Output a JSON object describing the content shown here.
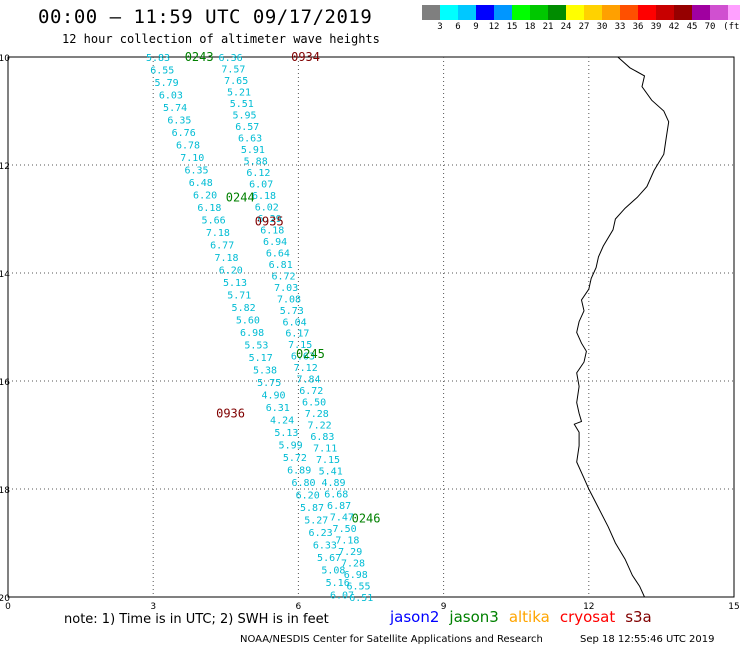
{
  "header": {
    "title": "00:00 – 11:59 UTC 09/17/2019",
    "subtitle": "12 hour collection of altimeter wave heights"
  },
  "colorbar": {
    "colors": [
      "#7f7f7f",
      "#00ffff",
      "#00c8ff",
      "#0000ff",
      "#0096ff",
      "#00ff00",
      "#00c800",
      "#008c00",
      "#ffff00",
      "#ffd200",
      "#ffa000",
      "#ff5000",
      "#ff0000",
      "#c80000",
      "#960000",
      "#a000a0",
      "#d050d0",
      "#ffa0ff",
      "#000000"
    ],
    "labels": [
      "3",
      "6",
      "9",
      "12",
      "15",
      "18",
      "21",
      "24",
      "27",
      "30",
      "33",
      "36",
      "39",
      "42",
      "45",
      "70",
      "(ft)"
    ]
  },
  "axes": {
    "x_ticks": [
      "0",
      "3",
      "6",
      "9",
      "12",
      "15"
    ],
    "y_ticks": [
      "-10",
      "-12",
      "-14",
      "-16",
      "-18",
      "-20"
    ],
    "xlim": [
      0,
      15
    ],
    "ylim": [
      -20,
      -10
    ]
  },
  "passes": [
    {
      "time": "0243",
      "color": "#008000",
      "lon": 3.65,
      "lat": -10.0
    },
    {
      "time": "0934",
      "color": "#800000",
      "lon": 5.85,
      "lat": -10.0
    },
    {
      "time": "0244",
      "color": "#008000",
      "lon": 4.5,
      "lat": -12.6
    },
    {
      "time": "0935",
      "color": "#800000",
      "lon": 5.1,
      "lat": -13.05
    },
    {
      "time": "0245",
      "color": "#008000",
      "lon": 5.95,
      "lat": -15.5
    },
    {
      "time": "0936",
      "color": "#800000",
      "lon": 4.3,
      "lat": -16.6
    },
    {
      "time": "0246",
      "color": "#008000",
      "lon": 7.1,
      "lat": -18.55
    }
  ],
  "tracks": [
    {
      "color": "#00bcd4",
      "start": [
        3.1,
        -10.0
      ],
      "end": [
        6.9,
        -19.95
      ],
      "values": [
        "5.83",
        "6.55",
        "5.79",
        "6.03",
        "5.74",
        "6.35",
        "6.76",
        "6.78",
        "7.10",
        "6.35",
        "6.48",
        "6.20",
        "6.18",
        "5.66",
        "7.18",
        "6.77",
        "7.18",
        "6.20",
        "5.13",
        "5.71",
        "5.82",
        "5.60",
        "6.98",
        "5.53",
        "5.17",
        "5.38",
        "5.75",
        "4.90",
        "6.31",
        "4.24",
        "5.13",
        "5.99",
        "5.72",
        "6.89",
        "6.80",
        "6.20",
        "5.87",
        "5.27",
        "6.23",
        "6.33",
        "5.67",
        "5.08",
        "5.16",
        "6.07"
      ]
    },
    {
      "color": "#00bcd4",
      "start": [
        4.6,
        -10.0
      ],
      "end": [
        7.3,
        -20.0
      ],
      "values": [
        "6.36",
        "7.57",
        "7.65",
        "5.21",
        "5.51",
        "5.95",
        "6.57",
        "6.63",
        "5.91",
        "5.88",
        "6.12",
        "6.07",
        "6.18",
        "6.02",
        "6.29",
        "6.18",
        "6.94",
        "6.64",
        "6.81",
        "6.72",
        "7.03",
        "7.08",
        "5.73",
        "6.04",
        "6.17",
        "7.15",
        "6.63",
        "7.12",
        "7.84",
        "6.72",
        "6.50",
        "7.28",
        "7.22",
        "6.83",
        "7.11",
        "7.15",
        "5.41",
        "4.89",
        "6.68",
        "6.87",
        "7.47",
        "7.50",
        "7.18",
        "7.29",
        "7.28",
        "6.98",
        "6.55",
        "6.51"
      ]
    }
  ],
  "coastline": [
    [
      12.6,
      -10.0
    ],
    [
      12.85,
      -10.2
    ],
    [
      13.15,
      -10.35
    ],
    [
      13.1,
      -10.55
    ],
    [
      13.3,
      -10.8
    ],
    [
      13.55,
      -11.0
    ],
    [
      13.65,
      -11.2
    ],
    [
      13.6,
      -11.5
    ],
    [
      13.55,
      -11.8
    ],
    [
      13.35,
      -12.1
    ],
    [
      13.2,
      -12.4
    ],
    [
      13.0,
      -12.6
    ],
    [
      12.75,
      -12.8
    ],
    [
      12.55,
      -13.0
    ],
    [
      12.5,
      -13.2
    ],
    [
      12.3,
      -13.5
    ],
    [
      12.2,
      -13.7
    ],
    [
      12.15,
      -13.9
    ],
    [
      12.05,
      -14.1
    ],
    [
      12.0,
      -14.3
    ],
    [
      11.85,
      -14.5
    ],
    [
      11.9,
      -14.7
    ],
    [
      11.8,
      -14.9
    ],
    [
      11.75,
      -15.1
    ],
    [
      11.85,
      -15.3
    ],
    [
      11.95,
      -15.45
    ],
    [
      11.9,
      -15.65
    ],
    [
      11.75,
      -15.85
    ],
    [
      11.8,
      -16.1
    ],
    [
      11.75,
      -16.4
    ],
    [
      11.8,
      -16.6
    ],
    [
      11.85,
      -16.75
    ],
    [
      11.7,
      -16.8
    ],
    [
      11.8,
      -16.95
    ],
    [
      11.8,
      -17.2
    ],
    [
      11.75,
      -17.5
    ],
    [
      11.9,
      -17.8
    ],
    [
      12.0,
      -18.0
    ],
    [
      12.2,
      -18.35
    ],
    [
      12.4,
      -18.7
    ],
    [
      12.55,
      -19.0
    ],
    [
      12.75,
      -19.3
    ],
    [
      12.9,
      -19.6
    ],
    [
      13.05,
      -19.8
    ],
    [
      13.15,
      -20.0
    ]
  ],
  "footer": {
    "note": "note: 1) Time is in UTC; 2) SWH is in feet",
    "legend": [
      {
        "label": "jason2",
        "color": "#0000ff"
      },
      {
        "label": "jason3",
        "color": "#008000"
      },
      {
        "label": "altika",
        "color": "#ffa500"
      },
      {
        "label": "cryosat",
        "color": "#ff0000"
      },
      {
        "label": "s3a",
        "color": "#800000"
      }
    ],
    "credit": "NOAA/NESDIS Center for Satellite Applications and Research",
    "timestamp": "Sep 18 12:55:46 UTC 2019"
  }
}
